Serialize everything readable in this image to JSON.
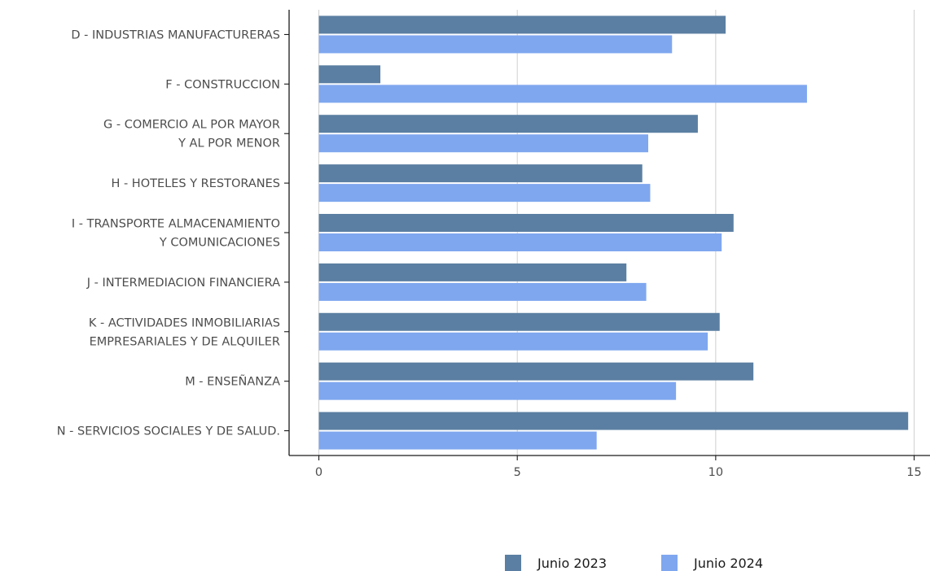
{
  "chart_data": {
    "type": "bar",
    "orientation": "horizontal",
    "categories": [
      [
        "D - INDUSTRIAS  MANUFACTURERAS"
      ],
      [
        "F - CONSTRUCCION"
      ],
      [
        "G - COMERCIO AL POR MAYOR",
        "Y AL POR  MENOR"
      ],
      [
        "H - HOTELES Y RESTORANES"
      ],
      [
        "I - TRANSPORTE ALMACENAMIENTO",
        "Y COMUNICACIONES"
      ],
      [
        "J - INTERMEDIACION FINANCIERA"
      ],
      [
        "K - ACTIVIDADES INMOBILIARIAS",
        "EMPRESARIALES Y DE ALQUILER"
      ],
      [
        "M - ENSEÑANZA"
      ],
      [
        "N - SERVICIOS SOCIALES Y DE SALUD."
      ]
    ],
    "series": [
      {
        "name": "Junio 2023",
        "color": "#5b7fa2",
        "values": [
          10.25,
          1.55,
          9.55,
          8.15,
          10.45,
          7.75,
          10.1,
          10.95,
          14.85
        ]
      },
      {
        "name": "Junio 2024",
        "color": "#7fa7ef",
        "values": [
          8.9,
          12.3,
          8.3,
          8.35,
          10.15,
          8.25,
          9.8,
          9.0,
          7.0
        ]
      }
    ],
    "xticks": [
      "0",
      "5",
      "10",
      "15"
    ],
    "xtick_values": [
      0,
      5,
      10,
      15
    ],
    "xlim": [
      -0.75,
      15.4
    ],
    "grid": "vertical",
    "legend_position": "bottom"
  }
}
